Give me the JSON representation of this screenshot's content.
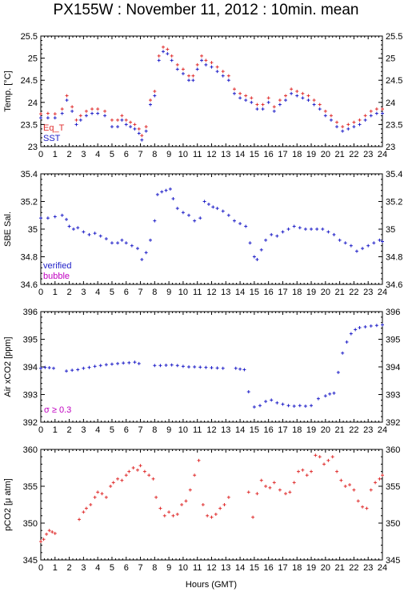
{
  "title": "PX155W : November 11, 2012 : 10min. mean",
  "xlabel": "Hours (GMT)",
  "xticks": [
    "0",
    "1",
    "2",
    "3",
    "4",
    "5",
    "6",
    "7",
    "8",
    "9",
    "10",
    "11",
    "12",
    "13",
    "14",
    "15",
    "16",
    "17",
    "18",
    "19",
    "20",
    "21",
    "22",
    "23",
    "24"
  ],
  "colors": {
    "red": "#e03030",
    "blue": "#2020c8",
    "magenta": "#c000c0",
    "axis": "#000000"
  },
  "chart_data": [
    {
      "type": "scatter",
      "ylabel": "Temp. [°C]",
      "ylim": [
        23,
        25.5
      ],
      "yticks": [
        "23",
        "23.5",
        "24",
        "24.5",
        "25",
        "25.5"
      ],
      "legend": [
        "Eq_T",
        "SST"
      ],
      "legend_placement": "bottom-left",
      "series": [
        {
          "name": "Eq_T",
          "color": "red",
          "x": [
            0,
            0.5,
            1,
            1.5,
            1.83,
            2.2,
            2.5,
            2.8,
            3.2,
            3.6,
            4,
            4.5,
            5,
            5.4,
            5.7,
            6,
            6.3,
            6.6,
            6.9,
            7.1,
            7.4,
            7.7,
            8,
            8.3,
            8.6,
            8.9,
            9.2,
            9.6,
            10,
            10.4,
            10.7,
            11,
            11.3,
            11.6,
            12,
            12.4,
            12.8,
            13.2,
            13.6,
            14,
            14.4,
            14.8,
            15.2,
            15.6,
            16,
            16.4,
            16.8,
            17.2,
            17.6,
            18,
            18.4,
            18.8,
            19.2,
            19.6,
            20,
            20.4,
            20.8,
            21.2,
            21.6,
            22,
            22.4,
            22.8,
            23.2,
            23.6,
            24
          ],
          "y": [
            23.74,
            23.75,
            23.74,
            23.85,
            24.15,
            23.9,
            23.6,
            23.7,
            23.8,
            23.85,
            23.85,
            23.8,
            23.6,
            23.6,
            23.7,
            23.6,
            23.55,
            23.5,
            23.4,
            23.25,
            23.45,
            24.05,
            24.25,
            25.05,
            25.25,
            25.2,
            25.05,
            24.85,
            24.75,
            24.6,
            24.6,
            24.85,
            25.05,
            24.95,
            24.9,
            24.8,
            24.7,
            24.6,
            24.3,
            24.2,
            24.15,
            24.1,
            23.95,
            23.95,
            24.1,
            23.9,
            24.05,
            24.15,
            24.3,
            24.25,
            24.2,
            24.15,
            24.05,
            23.95,
            23.8,
            23.7,
            23.55,
            23.45,
            23.5,
            23.55,
            23.6,
            23.7,
            23.8,
            23.85,
            23.85
          ]
        },
        {
          "name": "SST",
          "color": "blue",
          "x": [
            0,
            0.5,
            1,
            1.5,
            1.83,
            2.2,
            2.5,
            2.8,
            3.2,
            3.6,
            4,
            4.5,
            5,
            5.4,
            5.7,
            6,
            6.3,
            6.6,
            6.9,
            7.1,
            7.4,
            7.7,
            8,
            8.3,
            8.6,
            8.9,
            9.2,
            9.6,
            10,
            10.4,
            10.7,
            11,
            11.3,
            11.6,
            12,
            12.4,
            12.8,
            13.2,
            13.6,
            14,
            14.4,
            14.8,
            15.2,
            15.6,
            16,
            16.4,
            16.8,
            17.2,
            17.6,
            18,
            18.4,
            18.8,
            19.2,
            19.6,
            20,
            20.4,
            20.8,
            21.2,
            21.6,
            22,
            22.4,
            22.8,
            23.2,
            23.6,
            24
          ],
          "y": [
            23.65,
            23.65,
            23.65,
            23.75,
            24.05,
            23.8,
            23.5,
            23.6,
            23.7,
            23.75,
            23.75,
            23.7,
            23.45,
            23.45,
            23.6,
            23.5,
            23.45,
            23.4,
            23.3,
            23.15,
            23.35,
            23.95,
            24.15,
            24.95,
            25.15,
            25.1,
            24.95,
            24.75,
            24.65,
            24.5,
            24.5,
            24.75,
            24.95,
            24.85,
            24.8,
            24.7,
            24.6,
            24.5,
            24.2,
            24.1,
            24.05,
            24,
            23.85,
            23.85,
            24,
            23.8,
            23.95,
            24.05,
            24.2,
            24.15,
            24.1,
            24.05,
            23.95,
            23.85,
            23.7,
            23.6,
            23.45,
            23.35,
            23.4,
            23.45,
            23.5,
            23.6,
            23.7,
            23.75,
            23.75
          ]
        }
      ]
    },
    {
      "type": "scatter",
      "ylabel": "SBE Sal.",
      "ylim": [
        34.6,
        35.4
      ],
      "yticks": [
        "34.6",
        "34.8",
        "35",
        "35.2",
        "35.4"
      ],
      "legend": [
        "verified",
        "bubble"
      ],
      "legend_placement": "bottom-left",
      "series": [
        {
          "name": "verified",
          "color": "blue",
          "x": [
            0,
            0.5,
            1,
            1.5,
            1.8,
            2,
            2.3,
            2.6,
            3,
            3.4,
            3.8,
            4.2,
            4.6,
            5,
            5.4,
            5.7,
            6,
            6.4,
            6.8,
            7.1,
            7.4,
            7.7,
            8,
            8.2,
            8.5,
            8.8,
            9.1,
            9.3,
            9.6,
            10,
            10.4,
            10.8,
            11.2,
            11.5,
            11.8,
            12.1,
            12.4,
            12.8,
            13.2,
            13.6,
            14,
            14.4,
            14.7,
            15,
            15.2,
            15.5,
            15.8,
            16.2,
            16.6,
            17,
            17.4,
            17.8,
            18.2,
            18.6,
            19,
            19.4,
            19.8,
            20.2,
            20.6,
            21,
            21.4,
            21.8,
            22.2,
            22.6,
            23,
            23.4,
            23.8,
            24
          ],
          "y": [
            35.08,
            35.08,
            35.09,
            35.1,
            35.07,
            35.02,
            35,
            35.01,
            34.98,
            34.96,
            34.97,
            34.95,
            34.93,
            34.9,
            34.9,
            34.92,
            34.9,
            34.88,
            34.86,
            34.78,
            34.83,
            34.92,
            35.06,
            35.25,
            35.27,
            35.28,
            35.29,
            35.22,
            35.15,
            35.12,
            35.1,
            35.06,
            35.08,
            35.2,
            35.18,
            35.16,
            35.15,
            35.13,
            35.1,
            35.06,
            35.04,
            35.02,
            34.9,
            34.8,
            34.78,
            34.85,
            34.92,
            34.96,
            34.95,
            34.98,
            35,
            35.02,
            35.01,
            35,
            35,
            35,
            35,
            34.98,
            34.96,
            34.92,
            34.9,
            34.88,
            34.84,
            34.86,
            34.88,
            34.9,
            34.92,
            34.91
          ]
        },
        {
          "name": "bubble",
          "color": "magenta",
          "x": [],
          "y": []
        }
      ]
    },
    {
      "type": "scatter",
      "ylabel": "Air xCO2 [ppm]",
      "ylim": [
        392,
        396
      ],
      "yticks": [
        "392",
        "393",
        "394",
        "395",
        "396"
      ],
      "annotation": "σ ≥ 0.3",
      "series": [
        {
          "name": "Air xCO2",
          "color": "blue",
          "x": [
            0,
            0.3,
            0.6,
            0.9,
            1.8,
            2.2,
            2.6,
            3,
            3.4,
            3.8,
            4.2,
            4.6,
            5,
            5.4,
            5.8,
            6.2,
            6.6,
            6.9,
            8,
            8.4,
            8.8,
            9.2,
            9.6,
            10,
            10.4,
            10.8,
            11.2,
            11.6,
            12,
            12.4,
            12.8,
            13.7,
            14,
            14.3,
            14.6,
            15,
            15.4,
            15.8,
            16.2,
            16.6,
            17,
            17.4,
            17.8,
            18.2,
            18.6,
            19,
            19.5,
            20,
            20.3,
            20.6,
            20.9,
            21.2,
            21.5,
            21.8,
            22.1,
            22.4,
            22.8,
            23.2,
            23.6,
            24
          ],
          "y": [
            393.95,
            393.98,
            393.97,
            393.95,
            393.85,
            393.88,
            393.9,
            393.95,
            393.98,
            394.02,
            394.05,
            394.08,
            394.1,
            394.12,
            394.14,
            394.15,
            394.17,
            394.12,
            394.05,
            394.05,
            394.06,
            394.07,
            394.05,
            394.02,
            394,
            394,
            393.99,
            393.98,
            393.97,
            393.96,
            393.95,
            393.95,
            393.92,
            393.9,
            393.1,
            392.55,
            392.6,
            392.75,
            392.8,
            392.7,
            392.65,
            392.6,
            392.58,
            392.6,
            392.58,
            392.6,
            392.85,
            392.95,
            393.02,
            393.05,
            393.8,
            394.5,
            394.9,
            395.2,
            395.35,
            395.42,
            395.45,
            395.48,
            395.5,
            395.52
          ]
        }
      ]
    },
    {
      "type": "scatter",
      "ylabel": "pCO2 [μ atm]",
      "ylim": [
        345,
        360
      ],
      "yticks": [
        "345",
        "350",
        "355",
        "360"
      ],
      "series": [
        {
          "name": "pCO2",
          "color": "red",
          "x": [
            0,
            0.2,
            0.4,
            0.6,
            0.8,
            1,
            2.7,
            3,
            3.2,
            3.5,
            3.8,
            4,
            4.3,
            4.6,
            4.9,
            5.1,
            5.4,
            5.7,
            6,
            6.2,
            6.5,
            6.8,
            7,
            7.3,
            7.6,
            7.9,
            8.1,
            8.4,
            8.7,
            9,
            9.3,
            9.6,
            9.9,
            10.2,
            10.5,
            10.8,
            11.1,
            11.4,
            11.7,
            12,
            12.3,
            12.6,
            12.9,
            13.2,
            14.6,
            14.9,
            15.2,
            15.5,
            15.8,
            16.1,
            16.4,
            16.8,
            17.2,
            17.5,
            17.8,
            18.1,
            18.4,
            18.7,
            19,
            19.3,
            19.6,
            19.9,
            20.2,
            20.5,
            20.8,
            21.1,
            21.4,
            21.7,
            22,
            22.3,
            22.6,
            22.9,
            23.2,
            23.5,
            23.8,
            24
          ],
          "y": [
            347.5,
            347.8,
            348.5,
            349,
            348.8,
            348.6,
            350.5,
            351.5,
            352,
            352.5,
            353.5,
            354.2,
            354,
            353.5,
            355,
            355.5,
            356,
            355.8,
            356.5,
            357,
            357.5,
            357.2,
            357.8,
            357,
            356.5,
            356,
            353.5,
            352,
            351,
            351.5,
            351,
            351.2,
            352.5,
            353,
            354.5,
            356.5,
            358.5,
            352.5,
            351,
            350.8,
            351.2,
            352,
            352.5,
            353.5,
            354.2,
            350.8,
            354,
            355.8,
            355,
            354.8,
            355.5,
            354.5,
            354,
            354.2,
            355.5,
            357,
            357.2,
            356.5,
            357,
            359.2,
            359,
            358,
            358.5,
            359,
            357,
            355.8,
            355,
            355.2,
            354.5,
            353,
            352.2,
            352,
            354.5,
            355.5,
            356,
            356.5
          ]
        }
      ]
    }
  ]
}
